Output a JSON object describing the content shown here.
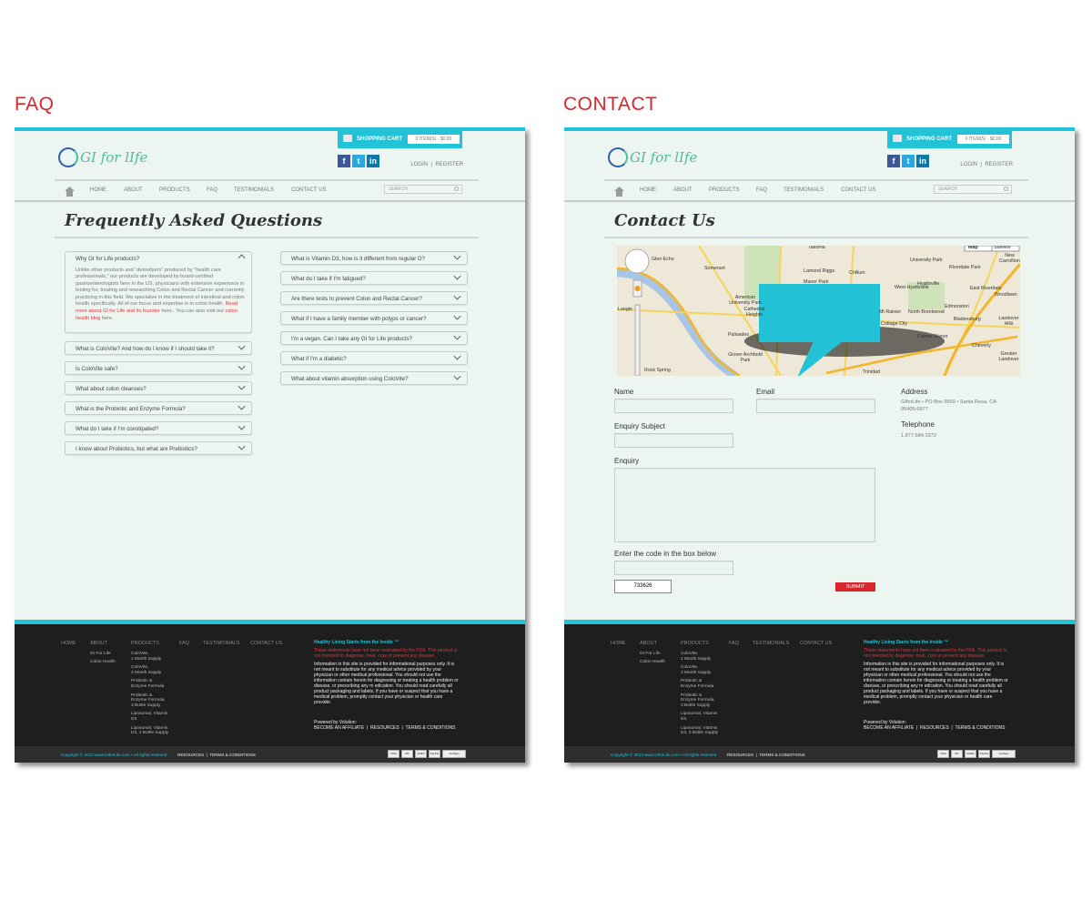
{
  "labels": {
    "faq": "FAQ",
    "contact": "CONTACT"
  },
  "shared": {
    "cart_label": "SHOPPING CART",
    "cart_summary": "0 ITEM(S) - $0.00",
    "logo_text": "GI for lIfe",
    "social": [
      {
        "icon": "facebook-icon",
        "glyph": "f",
        "color": "#3b5998"
      },
      {
        "icon": "twitter-icon",
        "glyph": "t",
        "color": "#29a9e1"
      },
      {
        "icon": "linkedin-icon",
        "glyph": "in",
        "color": "#0e76a8"
      }
    ],
    "login": "LOGIN",
    "register": "REGISTER",
    "nav": [
      "HOME",
      "ABOUT",
      "PRODUCTS",
      "FAQ",
      "TESTIMONIALS",
      "CONTACT US"
    ],
    "search_placeholder": "SEARCH",
    "footer": {
      "nav": [
        "HOME",
        "ABOUT",
        "PRODUCTS",
        "FAQ",
        "TESTIMONIALS",
        "CONTACT US"
      ],
      "about_links": [
        "GI For Life",
        "Colon Health"
      ],
      "product_links": [
        "ColoVite,\n1 Month Supply",
        "ColoVite,\n3 Month Supply",
        "Probiotic &\nEnzyme Formula",
        "Probiotic &\nEnzyme Formula,\n3 Bottle Supply",
        "Liposomal, Vitamin\nD3",
        "Liposomal, Vitamin\nD3, 3 Bottle Supply"
      ],
      "tagline": "Healthy Living Starts from the Inside ™",
      "fda": "These statements have not been evaluated by the FDA. This product is not intended to diagnose, treat, cure or prevent any disease.",
      "disclaimer": "Information in this site is provided for informational purposes only. It is not meant to substitute for any medical advice provided by your physician or other medical professional. You should not use the information contain herein for diagnosing or treating a health problem or disease, or prescribing any m edication. You should read carefully all product packaging and labels. If you have or suspect that you have a medical problem, promptly contact your physician or health care provider.",
      "powered": "Powered by Volution:",
      "links": "BECOME AN AFFILIATE  |  RESOURCES  |  TERMS & CONDITIONS",
      "copyright": "Copyright © 2013  www.GIforLife.com • All rights reserved",
      "bottom_links": "RESOURCES  |  TERMS & CONDITIONS",
      "payments": [
        "VISA",
        "MC",
        "AMEX",
        "PayPal",
        "VeriSign"
      ]
    }
  },
  "faq_page": {
    "title": "Frequently Asked Questions",
    "open_question": "Why GI for Life products?",
    "open_answer_1": "Unlike other products and \"detoxifyers\" produced by \"health care professionals,\" our products are developed by board-certified gastroenterologists here in the US, physicians with extensive experience in testing for, treating and researching Colon and Rectal Cancer and currently practicing in this field. We specialize in the treatment of intestinal and colon health specifically. All of our focus and expertise is in colon health. ",
    "open_answer_link_1": "Read more about GI for Life and its founder",
    "open_answer_2": " here.. You can also visit our ",
    "open_answer_link_2": "colon health blog",
    "open_answer_3": " here.",
    "left_questions": [
      "What is ColoVite? And how do I know if I should take it?",
      "Is ColoVite safe?",
      "What about colon cleanses?",
      "What is the Probiotic and Enzyme Formula?",
      "What do I take if I'm constipated?",
      "I know about Probiotics, but what are Prebiotics?"
    ],
    "right_questions": [
      "What is Vitamin D3, how is it different from regular D?",
      "What do I take if I'm fatigued?",
      "Are there tests to prevent Colon and Rectal Cancer?",
      "What if I have a family member with polyps or cancer?",
      "I'm a vegan. Can I take any GI for Life products?",
      "What if I'm a diabetic?",
      "What about vitamin absorption using ColoVite?"
    ]
  },
  "contact_page": {
    "title": "Contact Us",
    "map_type": [
      "Map",
      "Satellite"
    ],
    "map_places": [
      "Glen Echo",
      "Somerset",
      "Takoma",
      "Lamond Riggs",
      "Chillum",
      "Manor Park",
      "University Park",
      "Riverdale Park",
      "New Carrollton",
      "West Hyattsville",
      "Hyattsville",
      "East Riverdale",
      "Woodlawn",
      "American University Park",
      "Cathedral Heights",
      "Mt Rainier",
      "North Brentwood",
      "Edmonston",
      "Bladensburg",
      "Landover Hills",
      "Cottage City",
      "Palisades",
      "Colmar Manor",
      "Cheverly",
      "Greater Landover",
      "Glover Archbold Park",
      "Rock Spring",
      "Trinidad",
      "Langle"
    ],
    "form": {
      "name": "Name",
      "email": "Email",
      "subject": "Enquiry Subject",
      "enquiry": "Enquiry",
      "code": "Enter the code in the box below",
      "captcha": "733626",
      "submit": "SUBMIT"
    },
    "address_label": "Address",
    "address": "GIforLife • PO Box 9569 • Santa Rosa, CA 95405-6877",
    "telephone_label": "Telephone",
    "telephone": "1.877.684.1372"
  }
}
